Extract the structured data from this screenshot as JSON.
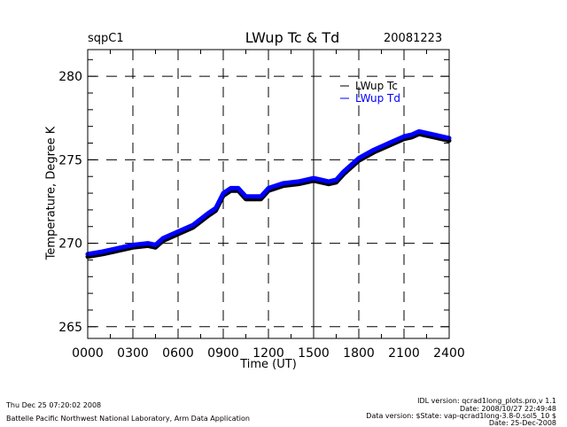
{
  "chart_data": {
    "type": "line",
    "title": "LWup Tc & Td",
    "site": "sqpC1",
    "date": "20081223",
    "xlabel": "Time (UT)",
    "ylabel": "Temperature, Degree K",
    "xlim": [
      0,
      24
    ],
    "ylim": [
      264.3,
      281.6
    ],
    "x_ticks": [
      0,
      3,
      6,
      9,
      12,
      15,
      18,
      21,
      24
    ],
    "x_tick_labels": [
      "0000",
      "0300",
      "0600",
      "0900",
      "1200",
      "1500",
      "1800",
      "2100",
      "2400"
    ],
    "y_ticks": [
      265,
      270,
      275,
      280
    ],
    "y_tick_labels": [
      "265",
      "270",
      "275",
      "280"
    ],
    "grid": true,
    "legend_position": "top-right",
    "x": [
      0,
      1,
      2,
      3,
      4,
      4.5,
      5,
      6,
      7,
      8,
      8.5,
      9,
      9.5,
      10,
      10.5,
      11,
      11.5,
      12,
      13,
      14,
      15,
      15.5,
      16,
      16.5,
      17,
      18,
      19,
      20,
      21,
      21.5,
      22,
      23,
      24
    ],
    "series": [
      {
        "name": "LWup Tc",
        "color": "#000000",
        "values": [
          269.2,
          269.35,
          269.55,
          269.75,
          269.85,
          269.75,
          270.15,
          270.55,
          270.95,
          271.65,
          271.95,
          272.85,
          273.15,
          273.15,
          272.65,
          272.65,
          272.65,
          273.15,
          273.45,
          273.55,
          273.75,
          273.65,
          273.55,
          273.65,
          274.15,
          274.95,
          275.45,
          275.85,
          276.25,
          276.35,
          276.55,
          276.35,
          276.15
        ]
      },
      {
        "name": "LWup Td",
        "color": "#0000ff",
        "values": [
          269.35,
          269.5,
          269.7,
          269.9,
          270.0,
          269.9,
          270.3,
          270.7,
          271.1,
          271.8,
          272.1,
          273.0,
          273.3,
          273.3,
          272.8,
          272.8,
          272.8,
          273.3,
          273.6,
          273.7,
          273.9,
          273.8,
          273.7,
          273.8,
          274.3,
          275.1,
          275.6,
          276.0,
          276.4,
          276.5,
          276.7,
          276.5,
          276.3
        ]
      }
    ]
  },
  "footer": {
    "timestamp": "Thu Dec 25 07:20:02 2008",
    "organization": "Battelle Pacific Northwest National Laboratory, Arm Data Application",
    "idl_version": "IDL version: qcrad1long_plots.pro,v 1.1",
    "idl_date": "Date: 2008/10/27 22:49:48",
    "data_version": "Data version: $State: vap-qcrad1long-3.8-0.sol5_10 $",
    "data_date": "Date: 25-Dec-2008"
  }
}
